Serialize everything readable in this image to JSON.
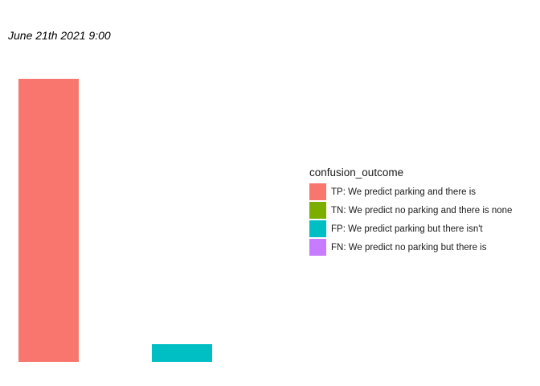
{
  "chart_data": {
    "type": "bar",
    "title": "June 21th 2021 9:00",
    "categories": [
      "TP: We predict parking and there is",
      "TN: We predict no parking and there is none",
      "FP: We predict parking but there isn't",
      "FN: We predict no parking but there is"
    ],
    "series": [
      {
        "values": [
          16,
          0,
          1,
          0
        ]
      }
    ],
    "colors": [
      "#F8766D",
      "#7CAE00",
      "#00BFC4",
      "#C77CFF"
    ],
    "ylim": [
      0,
      16
    ],
    "axes_visible": false,
    "grid": false,
    "legend": {
      "title": "confusion_outcome",
      "position": "right",
      "labels": [
        "TP: We predict parking and there is",
        "TN: We predict no parking and there is none",
        "FP: We predict parking but there isn't",
        "FN: We predict no parking but there is"
      ]
    }
  }
}
